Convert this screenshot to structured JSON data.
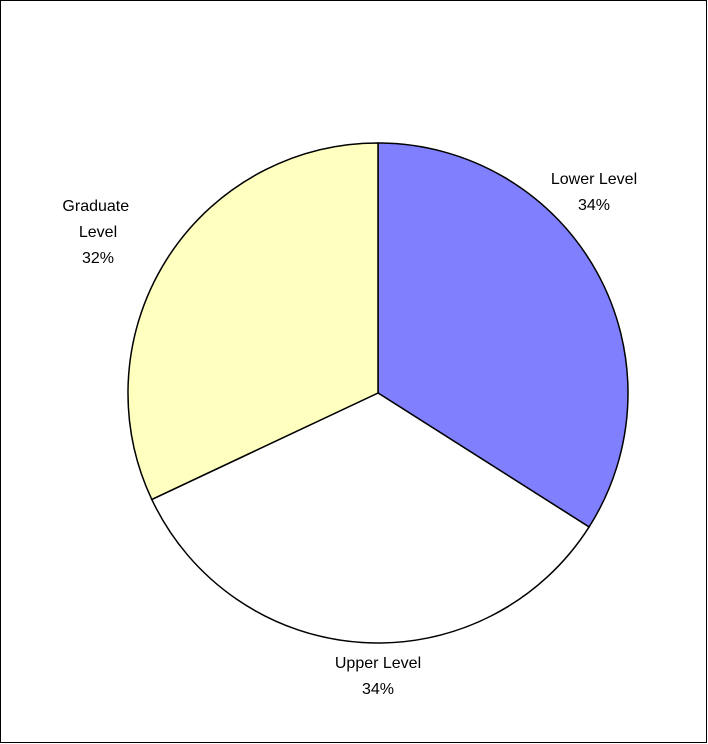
{
  "chart_data": {
    "type": "pie",
    "categories": [
      "Lower Level",
      "Upper Level",
      "Graduate Level"
    ],
    "values": [
      34,
      34,
      32
    ],
    "value_labels": [
      "34%",
      "34%",
      "32%"
    ],
    "colors": [
      "#8080ff",
      "#ffffff",
      "#ffffc0"
    ]
  }
}
